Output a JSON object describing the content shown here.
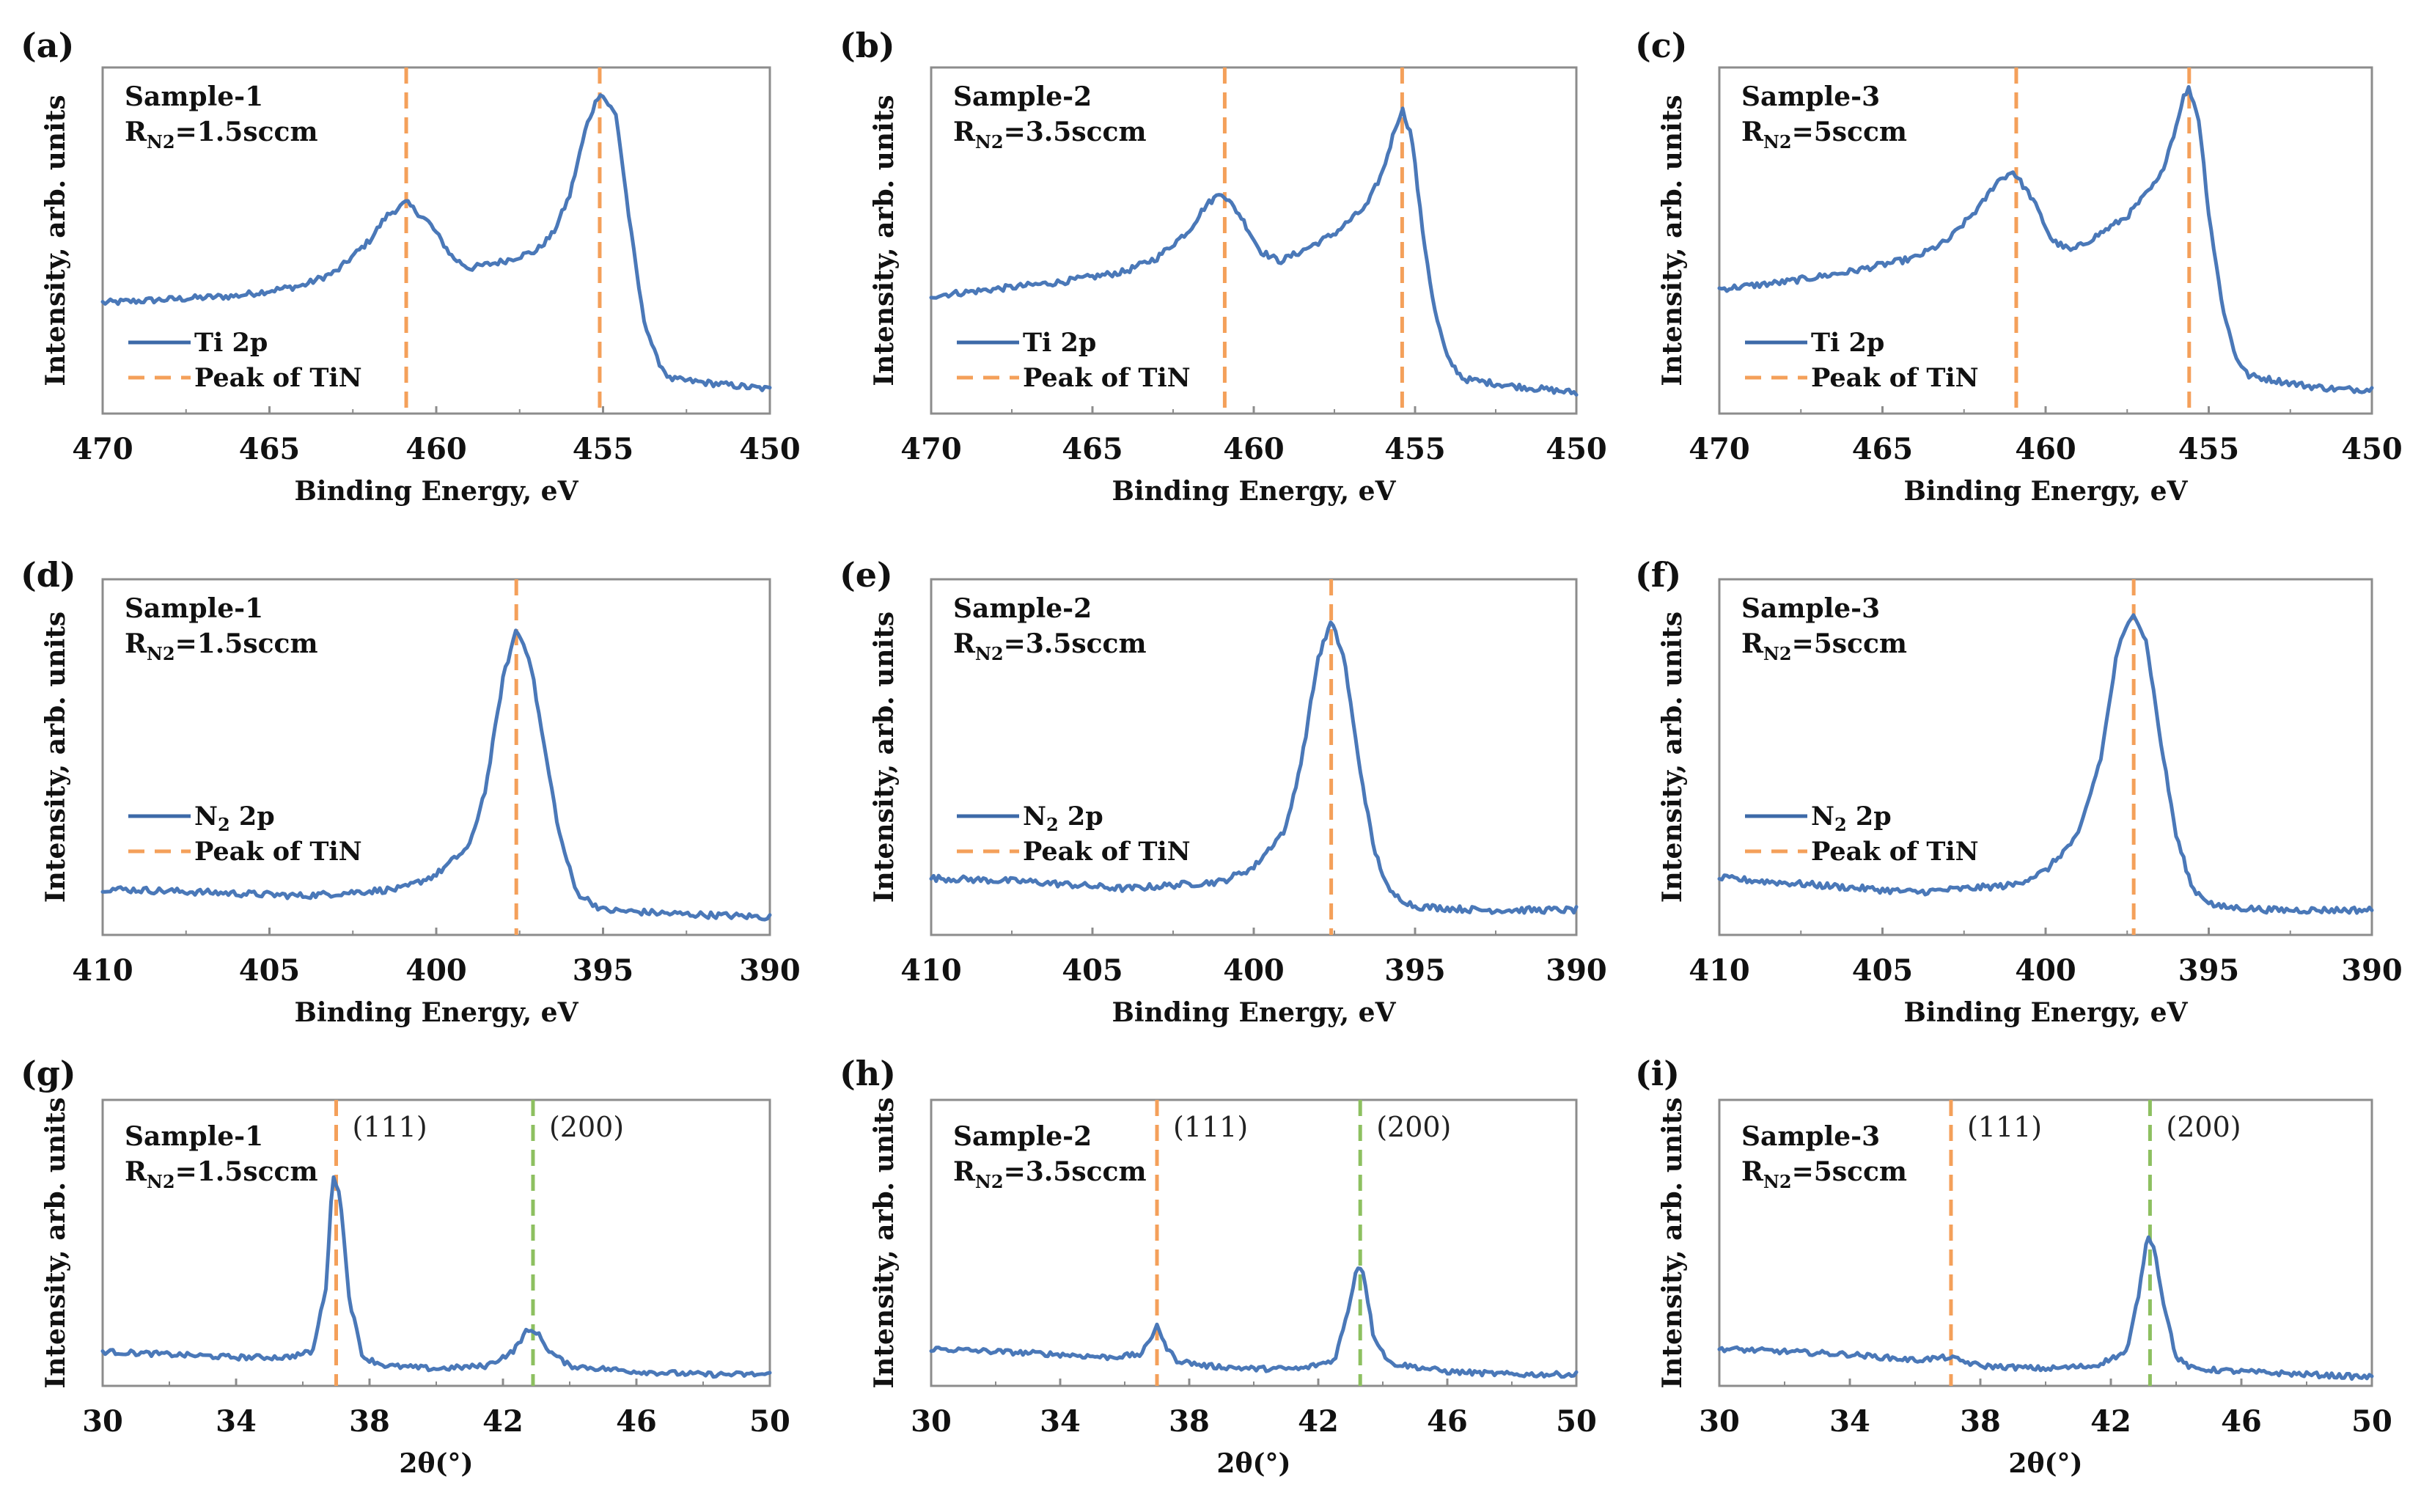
{
  "chart_data": [
    {
      "id": "a",
      "type": "line",
      "panel_label": "(a)",
      "sample": "Sample-1",
      "rn2_sub": "N2",
      "rn2_value": "=1.5sccm",
      "xlabel": "Binding Energy, eV",
      "ylabel": "Intensity, arb. units",
      "xlim": [
        470,
        450
      ],
      "ylim": [
        0,
        1
      ],
      "xticks": [
        "470",
        "465",
        "460",
        "455",
        "450"
      ],
      "vlines": [
        {
          "x": 460.9,
          "color": "#f4a05a"
        },
        {
          "x": 455.1,
          "color": "#f4a05a"
        }
      ],
      "legend": [
        {
          "label": "Ti 2p",
          "style": "solid"
        },
        {
          "label": "Peak of TiN",
          "style": "dashed"
        }
      ],
      "series": [
        {
          "x": [
            470,
            468,
            466,
            464,
            463,
            462,
            461.5,
            460.9,
            460.2,
            459.5,
            459,
            458,
            457,
            456.5,
            456,
            455.5,
            455.1,
            454.6,
            454.2,
            453.8,
            453.4,
            453,
            452,
            451,
            450
          ],
          "y": [
            0.32,
            0.33,
            0.34,
            0.37,
            0.41,
            0.5,
            0.57,
            0.61,
            0.55,
            0.45,
            0.42,
            0.44,
            0.47,
            0.52,
            0.63,
            0.83,
            0.93,
            0.86,
            0.55,
            0.28,
            0.16,
            0.1,
            0.09,
            0.08,
            0.07
          ]
        }
      ],
      "annotations": []
    },
    {
      "id": "b",
      "type": "line",
      "panel_label": "(b)",
      "sample": "Sample-2",
      "rn2_sub": "N2",
      "rn2_value": "=3.5sccm",
      "xlabel": "Binding Energy, eV",
      "ylabel": "Intensity, arb. units",
      "xlim": [
        470,
        450
      ],
      "ylim": [
        0,
        1
      ],
      "xticks": [
        "470",
        "465",
        "460",
        "455",
        "450"
      ],
      "vlines": [
        {
          "x": 460.9,
          "color": "#f4a05a"
        },
        {
          "x": 455.4,
          "color": "#f4a05a"
        }
      ],
      "legend": [
        {
          "label": "Ti 2p",
          "style": "solid"
        },
        {
          "label": "Peak of TiN",
          "style": "dashed"
        }
      ],
      "series": [
        {
          "x": [
            470,
            468,
            466,
            464,
            463,
            462,
            461.5,
            461,
            460.4,
            459.8,
            459.2,
            458.5,
            457.5,
            456.5,
            456,
            455.6,
            455.4,
            455.1,
            454.8,
            454.4,
            454,
            453.5,
            452,
            451,
            450
          ],
          "y": [
            0.34,
            0.36,
            0.38,
            0.41,
            0.45,
            0.53,
            0.6,
            0.64,
            0.57,
            0.47,
            0.44,
            0.47,
            0.52,
            0.6,
            0.7,
            0.83,
            0.88,
            0.8,
            0.55,
            0.3,
            0.16,
            0.1,
            0.08,
            0.07,
            0.06
          ]
        }
      ],
      "annotations": []
    },
    {
      "id": "c",
      "type": "line",
      "panel_label": "(c)",
      "sample": "Sample-3",
      "rn2_sub": "N2",
      "rn2_value": "=5sccm",
      "xlabel": "Binding Energy, eV",
      "ylabel": "Intensity, arb. units",
      "xlim": [
        470,
        450
      ],
      "ylim": [
        0,
        1
      ],
      "xticks": [
        "470",
        "465",
        "460",
        "455",
        "450"
      ],
      "vlines": [
        {
          "x": 460.9,
          "color": "#f4a05a"
        },
        {
          "x": 455.6,
          "color": "#f4a05a"
        }
      ],
      "legend": [
        {
          "label": "Ti 2p",
          "style": "solid"
        },
        {
          "label": "Peak of TiN",
          "style": "dashed"
        }
      ],
      "series": [
        {
          "x": [
            470,
            468,
            466,
            464,
            463,
            462,
            461.5,
            461,
            460.4,
            459.8,
            459.2,
            458.5,
            457.5,
            456.5,
            456,
            455.8,
            455.6,
            455.3,
            455,
            454.6,
            454.2,
            453.8,
            452,
            451,
            450
          ],
          "y": [
            0.36,
            0.38,
            0.41,
            0.45,
            0.5,
            0.6,
            0.67,
            0.7,
            0.62,
            0.5,
            0.47,
            0.51,
            0.57,
            0.68,
            0.83,
            0.91,
            0.94,
            0.85,
            0.58,
            0.32,
            0.17,
            0.11,
            0.08,
            0.07,
            0.07
          ]
        }
      ],
      "annotations": []
    },
    {
      "id": "d",
      "type": "line",
      "panel_label": "(d)",
      "sample": "Sample-1",
      "rn2_sub": "N2",
      "rn2_value": "=1.5sccm",
      "xlabel": "Binding Energy, eV",
      "ylabel": "Intensity, arb. units",
      "xlim": [
        410,
        390
      ],
      "ylim": [
        0,
        1
      ],
      "xticks": [
        "410",
        "405",
        "400",
        "395",
        "390"
      ],
      "vlines": [
        {
          "x": 397.6,
          "color": "#f4a05a"
        }
      ],
      "legend": [
        {
          "label": "N",
          "sub": "2",
          "label2": " 2p",
          "style": "solid"
        },
        {
          "label": "Peak of TiN",
          "style": "dashed"
        }
      ],
      "series": [
        {
          "x": [
            410,
            407,
            404,
            401,
            400,
            399,
            398.5,
            398,
            397.6,
            397.2,
            396.8,
            396.3,
            395.8,
            395,
            393,
            390
          ],
          "y": [
            0.13,
            0.12,
            0.11,
            0.13,
            0.17,
            0.25,
            0.42,
            0.72,
            0.86,
            0.78,
            0.55,
            0.28,
            0.12,
            0.07,
            0.06,
            0.05
          ]
        }
      ],
      "annotations": []
    },
    {
      "id": "e",
      "type": "line",
      "panel_label": "(e)",
      "sample": "Sample-2",
      "rn2_sub": "N2",
      "rn2_value": "=3.5sccm",
      "xlabel": "Binding Energy, eV",
      "ylabel": "Intensity, arb. units",
      "xlim": [
        410,
        390
      ],
      "ylim": [
        0,
        1
      ],
      "xticks": [
        "410",
        "405",
        "400",
        "395",
        "390"
      ],
      "vlines": [
        {
          "x": 397.6,
          "color": "#f4a05a"
        }
      ],
      "legend": [
        {
          "label": "N",
          "sub": "2",
          "label2": " 2p",
          "style": "solid"
        },
        {
          "label": "Peak of TiN",
          "style": "dashed"
        }
      ],
      "series": [
        {
          "x": [
            410,
            407,
            404,
            401,
            400,
            399,
            398.5,
            398,
            397.6,
            397.2,
            396.8,
            396.3,
            395.8,
            395,
            393,
            390
          ],
          "y": [
            0.16,
            0.15,
            0.13,
            0.15,
            0.19,
            0.3,
            0.5,
            0.78,
            0.88,
            0.78,
            0.52,
            0.25,
            0.12,
            0.08,
            0.07,
            0.07
          ]
        }
      ],
      "annotations": []
    },
    {
      "id": "f",
      "type": "line",
      "panel_label": "(f)",
      "sample": "Sample-3",
      "rn2_sub": "N2",
      "rn2_value": "=5sccm",
      "xlabel": "Binding Energy, eV",
      "ylabel": "Intensity, arb. units",
      "xlim": [
        410,
        390
      ],
      "ylim": [
        0,
        1
      ],
      "xticks": [
        "410",
        "405",
        "400",
        "395",
        "390"
      ],
      "vlines": [
        {
          "x": 397.3,
          "color": "#f4a05a"
        }
      ],
      "legend": [
        {
          "label": "N",
          "sub": "2",
          "label2": " 2p",
          "style": "solid"
        },
        {
          "label": "Peak of TiN",
          "style": "dashed"
        }
      ],
      "series": [
        {
          "x": [
            410,
            407,
            404,
            401,
            400,
            399,
            398.3,
            397.8,
            397.3,
            396.9,
            396.5,
            396,
            395.5,
            394.8,
            393,
            390
          ],
          "y": [
            0.16,
            0.14,
            0.12,
            0.14,
            0.18,
            0.28,
            0.5,
            0.8,
            0.91,
            0.82,
            0.56,
            0.28,
            0.13,
            0.08,
            0.07,
            0.07
          ]
        }
      ],
      "annotations": []
    },
    {
      "id": "g",
      "type": "line",
      "panel_label": "(g)",
      "sample": "Sample-1",
      "rn2_sub": "N2",
      "rn2_value": "=1.5sccm",
      "xlabel": "2θ(°)",
      "ylabel": "Intensity, arb. units",
      "xlim": [
        30,
        50
      ],
      "ylim": [
        0,
        1
      ],
      "xticks": [
        "30",
        "34",
        "38",
        "42",
        "46",
        "50"
      ],
      "vlines": [
        {
          "x": 37.0,
          "color": "#f4a05a"
        },
        {
          "x": 42.9,
          "color": "#8dc060"
        }
      ],
      "legend": [],
      "series": [
        {
          "x": [
            30,
            32,
            34,
            35.5,
            36.3,
            36.7,
            36.9,
            37.1,
            37.4,
            37.8,
            38.5,
            40,
            41.5,
            42.3,
            42.7,
            43,
            43.4,
            44,
            46,
            48,
            50
          ],
          "y": [
            0.12,
            0.11,
            0.1,
            0.1,
            0.12,
            0.35,
            0.74,
            0.68,
            0.3,
            0.1,
            0.07,
            0.06,
            0.07,
            0.12,
            0.19,
            0.19,
            0.12,
            0.07,
            0.05,
            0.04,
            0.04
          ]
        }
      ],
      "annotations": [
        {
          "text": "(111)",
          "x": 37.0
        },
        {
          "text": "(200)",
          "x": 42.9
        }
      ]
    },
    {
      "id": "h",
      "type": "line",
      "panel_label": "(h)",
      "sample": "Sample-2",
      "rn2_sub": "N2",
      "rn2_value": "=3.5sccm",
      "xlabel": "2θ(°)",
      "ylabel": "Intensity, arb. units",
      "xlim": [
        30,
        50
      ],
      "ylim": [
        0,
        1
      ],
      "xticks": [
        "30",
        "34",
        "38",
        "42",
        "46",
        "50"
      ],
      "vlines": [
        {
          "x": 37.0,
          "color": "#f4a05a"
        },
        {
          "x": 43.3,
          "color": "#8dc060"
        }
      ],
      "legend": [],
      "series": [
        {
          "x": [
            30,
            32,
            34,
            35.5,
            36.5,
            36.8,
            37.0,
            37.2,
            37.6,
            38.5,
            40,
            41.5,
            42.5,
            42.9,
            43.2,
            43.4,
            43.7,
            44.2,
            46,
            48,
            50
          ],
          "y": [
            0.13,
            0.12,
            0.11,
            0.1,
            0.11,
            0.16,
            0.22,
            0.15,
            0.09,
            0.07,
            0.06,
            0.06,
            0.09,
            0.25,
            0.42,
            0.4,
            0.18,
            0.08,
            0.05,
            0.04,
            0.04
          ]
        }
      ],
      "annotations": [
        {
          "text": "(111)",
          "x": 37.0
        },
        {
          "text": "(200)",
          "x": 43.3
        }
      ]
    },
    {
      "id": "i",
      "type": "line",
      "panel_label": "(i)",
      "sample": "Sample-3",
      "rn2_sub": "N2",
      "rn2_value": "=5sccm",
      "xlabel": "2θ(°)",
      "ylabel": "Intensity, arb. units",
      "xlim": [
        30,
        50
      ],
      "ylim": [
        0,
        1
      ],
      "xticks": [
        "30",
        "34",
        "38",
        "42",
        "46",
        "50"
      ],
      "vlines": [
        {
          "x": 37.1,
          "color": "#f4a05a"
        },
        {
          "x": 43.2,
          "color": "#8dc060"
        }
      ],
      "legend": [],
      "series": [
        {
          "x": [
            30,
            32,
            34,
            36,
            37,
            38,
            40,
            41.5,
            42.5,
            42.9,
            43.1,
            43.3,
            43.6,
            44,
            44.5,
            46,
            48,
            50
          ],
          "y": [
            0.13,
            0.12,
            0.11,
            0.09,
            0.1,
            0.07,
            0.06,
            0.07,
            0.12,
            0.35,
            0.52,
            0.5,
            0.3,
            0.1,
            0.06,
            0.05,
            0.04,
            0.03
          ]
        }
      ],
      "annotations": [
        {
          "text": "(111)",
          "x": 37.1
        },
        {
          "text": "(200)",
          "x": 43.2
        }
      ]
    }
  ]
}
